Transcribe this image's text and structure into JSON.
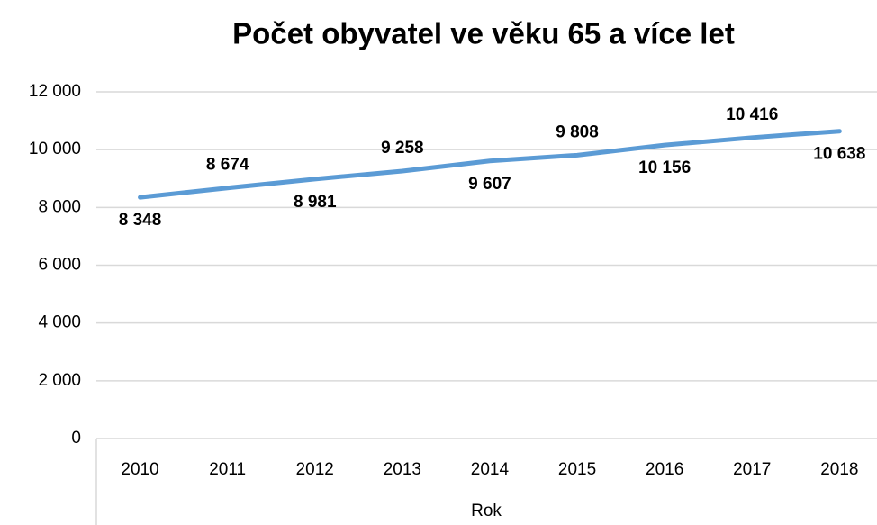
{
  "chart_data": {
    "type": "line",
    "title": "Počet obyvatel ve věku 65 a více let",
    "x_label": "Rok",
    "categories": [
      "2010",
      "2011",
      "2012",
      "2013",
      "2014",
      "2015",
      "2016",
      "2017",
      "2018"
    ],
    "series": [
      {
        "name": "Počet obyvatel",
        "color": "#5b9bd5",
        "values": [
          8348,
          8674,
          8981,
          9258,
          9607,
          9808,
          10156,
          10416,
          10638
        ],
        "value_labels": [
          "8 348",
          "8 674",
          "8 981",
          "9 258",
          "9 607",
          "9 808",
          "10 156",
          "10 416",
          "10 638"
        ]
      }
    ],
    "ylim": [
      0,
      12000
    ],
    "yticks": [
      0,
      {
        "value": 2000,
        "label": "2 000"
      },
      {
        "value": 4000,
        "label": "4 000"
      },
      {
        "value": 6000,
        "label": "6 000"
      },
      {
        "value": 8000,
        "label": "8 000"
      },
      {
        "value": 10000,
        "label": "10 000"
      },
      {
        "value": 12000,
        "label": "12 000"
      }
    ],
    "grid": true
  }
}
